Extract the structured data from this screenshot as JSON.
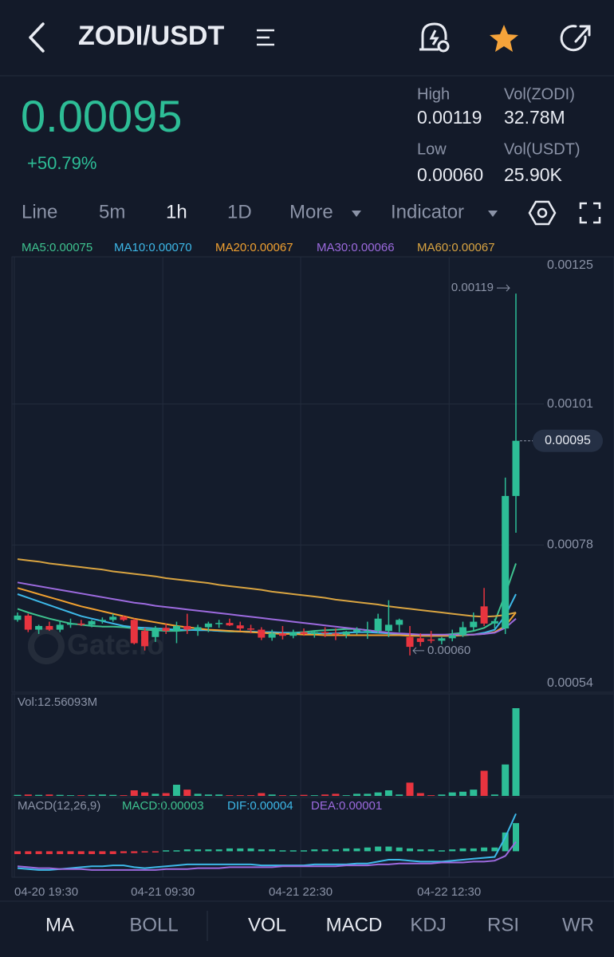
{
  "header": {
    "title": "ZODI/USDT"
  },
  "ticker": {
    "price": "0.00095",
    "change": "+50.79%",
    "stats": [
      {
        "label": "High",
        "value": "0.00119"
      },
      {
        "label": "Vol(ZODI)",
        "value": "32.78M"
      },
      {
        "label": "Low",
        "value": "0.00060"
      },
      {
        "label": "Vol(USDT)",
        "value": "25.90K"
      }
    ]
  },
  "intervals": [
    "Line",
    "5m",
    "1h",
    "1D",
    "More",
    "Indicator"
  ],
  "chart_data": {
    "type": "candlestick",
    "watermark": "Gate.io",
    "categories": [
      "04-20 19:30",
      null,
      null,
      null,
      null,
      null,
      null,
      null,
      null,
      null,
      null,
      null,
      null,
      null,
      "04-21 09:30",
      null,
      null,
      null,
      null,
      null,
      null,
      null,
      null,
      null,
      null,
      null,
      null,
      "04-21 22:30",
      null,
      null,
      null,
      null,
      null,
      null,
      null,
      null,
      null,
      null,
      null,
      null,
      null,
      "04-22 12:30",
      null,
      null,
      null,
      null,
      null,
      null
    ],
    "open": [
      0.000658,
      0.000665,
      0.000642,
      0.000648,
      0.000642,
      0.00065,
      0.000652,
      0.00065,
      0.000656,
      0.000658,
      0.000663,
      0.000658,
      0.00064,
      0.00063,
      0.000645,
      0.00064,
      0.000648,
      0.000642,
      0.000646,
      0.000652,
      0.000653,
      0.000649,
      0.000644,
      0.000642,
      0.000629,
      0.000636,
      0.000632,
      0.000638,
      0.000635,
      0.000638,
      0.000636,
      0.000634,
      0.000639,
      0.000638,
      0.00064,
      0.00064,
      0.00065,
      0.00063,
      0.000628,
      0.000626,
      0.000624,
      0.000628,
      0.000633,
      0.000646,
      0.00068,
      0.000652,
      0.000644,
      0.00086
    ],
    "high": [
      0.00067,
      0.000668,
      0.00065,
      0.000655,
      0.000655,
      0.00066,
      0.000658,
      0.000658,
      0.000662,
      0.000668,
      0.000665,
      0.00066,
      0.000645,
      0.000648,
      0.000652,
      0.000655,
      0.000668,
      0.00065,
      0.000655,
      0.000658,
      0.00066,
      0.000655,
      0.00065,
      0.000646,
      0.000642,
      0.000648,
      0.000642,
      0.000644,
      0.00064,
      0.000646,
      0.000644,
      0.00064,
      0.000646,
      0.000655,
      0.000668,
      0.00069,
      0.00066,
      0.000648,
      0.000636,
      0.00064,
      0.00063,
      0.000642,
      0.000655,
      0.00067,
      0.00071,
      0.00066,
      0.00089,
      0.00119
    ],
    "low": [
      0.000655,
      0.000638,
      0.000635,
      0.00064,
      0.000638,
      0.000645,
      0.000648,
      0.000646,
      0.000652,
      0.000655,
      0.000656,
      0.000618,
      0.000608,
      0.000622,
      0.000635,
      0.00062,
      0.000635,
      0.000632,
      0.000638,
      0.000645,
      0.000648,
      0.00064,
      0.000636,
      0.000625,
      0.000624,
      0.000626,
      0.000628,
      0.000632,
      0.000629,
      0.00063,
      0.000625,
      0.000628,
      0.000634,
      0.000627,
      0.000636,
      0.00063,
      0.000638,
      0.0006,
      0.000615,
      0.00062,
      0.000618,
      0.000623,
      0.00063,
      0.00064,
      0.000648,
      0.000644,
      0.000635,
      0.0008
    ],
    "close": [
      0.000665,
      0.000642,
      0.000648,
      0.000642,
      0.00065,
      0.000652,
      0.00065,
      0.000656,
      0.000658,
      0.000663,
      0.000658,
      0.00062,
      0.000615,
      0.000645,
      0.00064,
      0.000648,
      0.000642,
      0.000646,
      0.000652,
      0.000653,
      0.000649,
      0.000644,
      0.000642,
      0.000629,
      0.000636,
      0.000632,
      0.000638,
      0.000635,
      0.000638,
      0.000636,
      0.000634,
      0.000639,
      0.000642,
      0.00064,
      0.00066,
      0.00065,
      0.000658,
      0.000614,
      0.000622,
      0.000624,
      0.000628,
      0.000633,
      0.000646,
      0.000655,
      0.000652,
      0.000656,
      0.00086,
      0.00095
    ],
    "up_color": "#2dbd96",
    "down_color": "#e8343f",
    "ylim": [
      0.00054,
      0.00125
    ],
    "yticks": [
      0.00054,
      0.00078,
      0.00101,
      0.00125
    ],
    "grid": true,
    "last_price": 0.00095,
    "low_marker": {
      "value": 0.0006,
      "label": "0.00060"
    },
    "ma": [
      {
        "name": "MA5:0.00075",
        "color": "#3ec28f",
        "values": [
          0.000676,
          0.00067,
          0.000665,
          0.00066,
          0.000656,
          0.000652,
          0.00065,
          0.000648,
          0.000647,
          0.000647,
          0.000646,
          0.000644,
          0.000642,
          0.000641,
          0.00064,
          0.00064,
          0.000641,
          0.000642,
          0.000641,
          0.00064,
          0.000639,
          0.000639,
          0.000638,
          0.000637,
          0.000636,
          0.000636,
          0.000637,
          0.000638,
          0.00064,
          0.000641,
          0.000642,
          0.000643,
          0.000643,
          0.000641,
          0.000639,
          0.000637,
          0.000635,
          0.000633,
          0.000632,
          0.000632,
          0.000633,
          0.000635,
          0.000637,
          0.00064,
          0.000645,
          0.000655,
          0.0007,
          0.00075
        ]
      },
      {
        "name": "MA10:0.00070",
        "color": "#3db8e8",
        "values": [
          0.0007,
          0.000694,
          0.000688,
          0.000682,
          0.000676,
          0.00067,
          0.000664,
          0.00066,
          0.000656,
          0.000652,
          0.000648,
          0.000646,
          0.000645,
          0.000644,
          0.000643,
          0.000642,
          0.000642,
          0.000641,
          0.000641,
          0.00064,
          0.00064,
          0.000639,
          0.000639,
          0.000638,
          0.000638,
          0.000637,
          0.000637,
          0.000636,
          0.000636,
          0.000636,
          0.000636,
          0.000637,
          0.000638,
          0.000638,
          0.000637,
          0.000636,
          0.000635,
          0.000634,
          0.000633,
          0.000632,
          0.000632,
          0.000632,
          0.000633,
          0.000634,
          0.000637,
          0.000642,
          0.000665,
          0.0007
        ]
      },
      {
        "name": "MA20:0.00067",
        "color": "#f0a030",
        "values": [
          0.00071,
          0.000705,
          0.0007,
          0.000695,
          0.00069,
          0.000685,
          0.00068,
          0.000676,
          0.000672,
          0.000668,
          0.000664,
          0.00066,
          0.000657,
          0.000654,
          0.000651,
          0.000648,
          0.000646,
          0.000644,
          0.000642,
          0.000641,
          0.00064,
          0.000639,
          0.000638,
          0.000637,
          0.000636,
          0.000635,
          0.000635,
          0.000634,
          0.000634,
          0.000633,
          0.000633,
          0.000633,
          0.000633,
          0.000633,
          0.000633,
          0.000633,
          0.000633,
          0.000632,
          0.000632,
          0.000632,
          0.000632,
          0.000632,
          0.000633,
          0.000634,
          0.000635,
          0.000638,
          0.000648,
          0.00067
        ]
      },
      {
        "name": "MA30:0.00066",
        "color": "#9c6ade",
        "values": [
          0.000719,
          0.000716,
          0.000713,
          0.00071,
          0.000707,
          0.000704,
          0.000701,
          0.000698,
          0.000695,
          0.000692,
          0.000689,
          0.000686,
          0.000684,
          0.000681,
          0.000679,
          0.000677,
          0.000675,
          0.000673,
          0.000671,
          0.000669,
          0.000667,
          0.000665,
          0.000663,
          0.000661,
          0.000659,
          0.000657,
          0.000655,
          0.000653,
          0.000651,
          0.000649,
          0.000647,
          0.000645,
          0.000643,
          0.000641,
          0.000639,
          0.000637,
          0.000636,
          0.000635,
          0.000634,
          0.000634,
          0.000634,
          0.000634,
          0.000634,
          0.000634,
          0.000635,
          0.000637,
          0.000645,
          0.00066
        ]
      },
      {
        "name": "MA60:0.00067",
        "color": "#d9a441",
        "values": [
          0.000757,
          0.000755,
          0.000753,
          0.00075,
          0.000748,
          0.000746,
          0.000744,
          0.000742,
          0.00074,
          0.000737,
          0.000735,
          0.000733,
          0.000731,
          0.000729,
          0.000726,
          0.000724,
          0.000722,
          0.00072,
          0.000718,
          0.000715,
          0.000713,
          0.000711,
          0.000709,
          0.000707,
          0.000704,
          0.000702,
          0.0007,
          0.000698,
          0.000696,
          0.000694,
          0.000691,
          0.000689,
          0.000687,
          0.000685,
          0.000683,
          0.00068,
          0.000678,
          0.000676,
          0.000674,
          0.000672,
          0.00067,
          0.000668,
          0.000666,
          0.000664,
          0.000663,
          0.000664,
          0.000666,
          0.00067
        ]
      }
    ],
    "volume": {
      "label": "Vol:12.56093M",
      "ylim": [
        0,
        12560930
      ],
      "values": [
        150000,
        200000,
        150000,
        200000,
        150000,
        100000,
        100000,
        150000,
        200000,
        150000,
        100000,
        800000,
        500000,
        300000,
        400000,
        1600000,
        900000,
        300000,
        200000,
        200000,
        100000,
        100000,
        100000,
        400000,
        200000,
        100000,
        100000,
        150000,
        100000,
        200000,
        300000,
        100000,
        300000,
        300000,
        500000,
        800000,
        200000,
        1900000,
        400000,
        100000,
        200000,
        500000,
        600000,
        900000,
        3600000,
        200000,
        4500000,
        12560930
      ]
    },
    "macd": {
      "title": "MACD(12,26,9)",
      "ylim": [
        -2.6e-05,
        4.2e-05
      ],
      "histogram": {
        "name": "MACD:0.00003",
        "color": "#3ec28f",
        "values": [
          -3e-06,
          -3e-06,
          -3e-06,
          -3e-06,
          -3e-06,
          -3e-06,
          -3e-06,
          -3e-06,
          -3e-06,
          -3e-06,
          -2e-06,
          -2e-06,
          -1e-06,
          -1e-06,
          1e-06,
          1e-06,
          2e-06,
          2e-06,
          2e-06,
          2e-06,
          3e-06,
          3e-06,
          3e-06,
          2e-06,
          2e-06,
          1e-06,
          1e-06,
          1e-06,
          2e-06,
          2e-06,
          2e-06,
          3e-06,
          3e-06,
          4e-06,
          5e-06,
          5e-06,
          4e-06,
          3e-06,
          2e-06,
          2e-06,
          1e-06,
          2e-06,
          3e-06,
          3e-06,
          4e-06,
          4e-06,
          2e-05,
          3e-05
        ]
      },
      "dif": {
        "name": "DIF:0.00004",
        "color": "#3db8e8",
        "values": [
          -1.8e-05,
          -1.9e-05,
          -2e-05,
          -2e-05,
          -1.9e-05,
          -1.8e-05,
          -1.7e-05,
          -1.6e-05,
          -1.6e-05,
          -1.5e-05,
          -1.5e-05,
          -1.7e-05,
          -1.8e-05,
          -1.7e-05,
          -1.6e-05,
          -1.5e-05,
          -1.4e-05,
          -1.4e-05,
          -1.4e-05,
          -1.4e-05,
          -1.4e-05,
          -1.4e-05,
          -1.4e-05,
          -1.5e-05,
          -1.5e-05,
          -1.5e-05,
          -1.5e-05,
          -1.5e-05,
          -1.4e-05,
          -1.4e-05,
          -1.4e-05,
          -1.4e-05,
          -1.3e-05,
          -1.3e-05,
          -1.1e-05,
          -9e-06,
          -9e-06,
          -1e-05,
          -1.1e-05,
          -1.1e-05,
          -1.1e-05,
          -1e-05,
          -9e-06,
          -8e-06,
          -7e-06,
          -6e-06,
          1.5e-05,
          4e-05
        ]
      },
      "dea": {
        "name": "DEA:0.00001",
        "color": "#9c6ade",
        "values": [
          -1.6e-05,
          -1.7e-05,
          -1.8e-05,
          -1.8e-05,
          -1.9e-05,
          -1.9e-05,
          -1.9e-05,
          -2e-05,
          -2e-05,
          -2e-05,
          -2e-05,
          -2e-05,
          -2e-05,
          -2e-05,
          -1.9e-05,
          -1.9e-05,
          -1.9e-05,
          -1.8e-05,
          -1.8e-05,
          -1.8e-05,
          -1.7e-05,
          -1.7e-05,
          -1.7e-05,
          -1.7e-05,
          -1.7e-05,
          -1.6e-05,
          -1.6e-05,
          -1.6e-05,
          -1.6e-05,
          -1.6e-05,
          -1.6e-05,
          -1.5e-05,
          -1.5e-05,
          -1.5e-05,
          -1.4e-05,
          -1.4e-05,
          -1.3e-05,
          -1.3e-05,
          -1.3e-05,
          -1.3e-05,
          -1.2e-05,
          -1.2e-05,
          -1.2e-05,
          -1.1e-05,
          -1.1e-05,
          -1e-05,
          -5e-06,
          1e-05
        ]
      }
    }
  },
  "indicator_tabs": [
    "MA",
    "BOLL",
    "VOL",
    "MACD",
    "KDJ",
    "RSI",
    "WR"
  ]
}
